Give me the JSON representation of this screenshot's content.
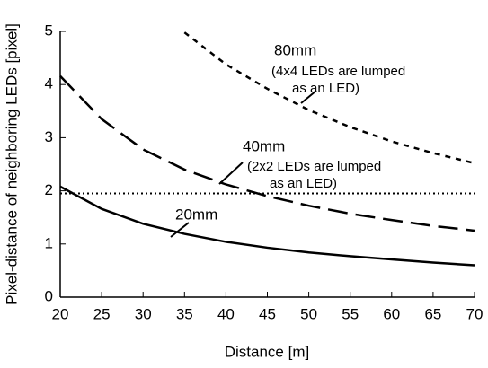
{
  "chart_data": {
    "type": "line",
    "xlabel": "Distance [m]",
    "ylabel": "Pixel-distance of neighboring LEDs [pixel]",
    "x": [
      20,
      25,
      30,
      35,
      40,
      45,
      50,
      55,
      60,
      65,
      70
    ],
    "series": [
      {
        "name": "20mm",
        "color": "#000000",
        "dash": "solid",
        "values": [
          2.08,
          1.66,
          1.38,
          1.19,
          1.04,
          0.93,
          0.84,
          0.77,
          0.71,
          0.65,
          0.6
        ]
      },
      {
        "name": "40mm",
        "color": "#000000",
        "dash": "long",
        "values": [
          4.16,
          3.35,
          2.78,
          2.4,
          2.12,
          1.9,
          1.72,
          1.57,
          1.45,
          1.34,
          1.25
        ]
      },
      {
        "name": "80mm",
        "color": "#000000",
        "dash": "short",
        "values": [
          null,
          null,
          null,
          4.98,
          4.38,
          3.92,
          3.52,
          3.2,
          2.93,
          2.71,
          2.52
        ]
      }
    ],
    "reference_line": 1.95,
    "annotations": [
      "(4x4 LEDs are lumped",
      "as an LED)",
      "(2x2 LEDs are lumped",
      "as an LED)"
    ],
    "xlim": [
      20,
      70
    ],
    "xticks": [
      20,
      25,
      30,
      35,
      40,
      45,
      50,
      55,
      60,
      65,
      70
    ],
    "ylim": [
      0,
      5
    ],
    "yticks": [
      0,
      1,
      2,
      3,
      4,
      5
    ],
    "grid": false
  }
}
